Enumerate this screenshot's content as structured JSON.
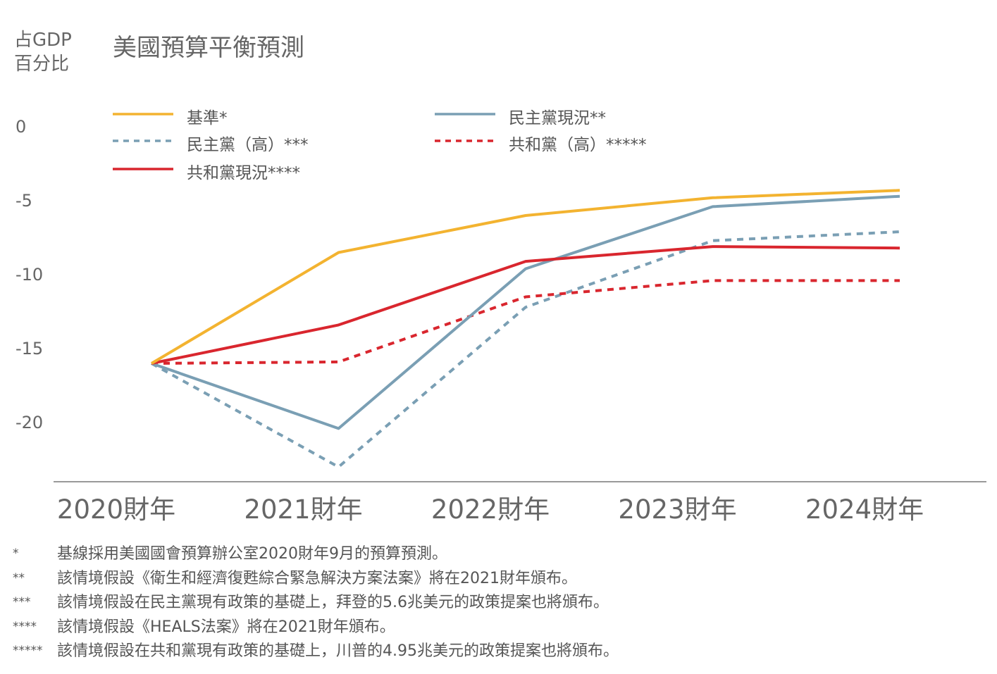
{
  "header": {
    "unit_line1": "占GDP",
    "unit_line2": "百分比",
    "title": "美國預算平衡預測"
  },
  "chart_data": {
    "type": "line",
    "title": "美國預算平衡預測",
    "ylabel": "占GDP 百分比",
    "xlabel": "",
    "categories": [
      "2020財年",
      "2021財年",
      "2022財年",
      "2023財年",
      "2024財年"
    ],
    "y_ticks": [
      "0",
      "-5",
      "-10",
      "-15",
      "-20"
    ],
    "ylim": [
      -24,
      0
    ],
    "grid": false,
    "legend_position": "top",
    "series": [
      {
        "name": "基準*",
        "color": "#f3b330",
        "dashed": false,
        "values": [
          -16,
          -8.5,
          -6,
          -4.8,
          -4.3
        ]
      },
      {
        "name": "民主黨現況**",
        "color": "#7a9fb4",
        "dashed": false,
        "values": [
          -16,
          -20.4,
          -9.6,
          -5.4,
          -4.7
        ]
      },
      {
        "name": "民主黨（高）***",
        "color": "#7a9fb4",
        "dashed": true,
        "values": [
          -16,
          -23,
          -12.2,
          -7.7,
          -7.1
        ]
      },
      {
        "name": "共和黨（高）*****",
        "color": "#d9262e",
        "dashed": true,
        "values": [
          -16,
          -15.9,
          -11.5,
          -10.4,
          -10.4
        ]
      },
      {
        "name": "共和黨現況****",
        "color": "#d9262e",
        "dashed": false,
        "values": [
          -16,
          -13.4,
          -9.1,
          -8.1,
          -8.2
        ]
      }
    ]
  },
  "footnotes": [
    {
      "mark": "*",
      "text": "基線採用美國國會預算辦公室2020財年9月的預算預測。"
    },
    {
      "mark": "**",
      "text": "該情境假設《衛生和經濟復甦綜合緊急解決方案法案》將在2021財年頒布。"
    },
    {
      "mark": "***",
      "text": "該情境假設在民主黨現有政策的基礎上，拜登的5.6兆美元的政策提案也將頒布。"
    },
    {
      "mark": "****",
      "text": "該情境假設《HEALS法案》將在2021財年頒布。"
    },
    {
      "mark": "*****",
      "text": "該情境假設在共和黨現有政策的基礎上，川普的4.95兆美元的政策提案也將頒布。"
    }
  ]
}
